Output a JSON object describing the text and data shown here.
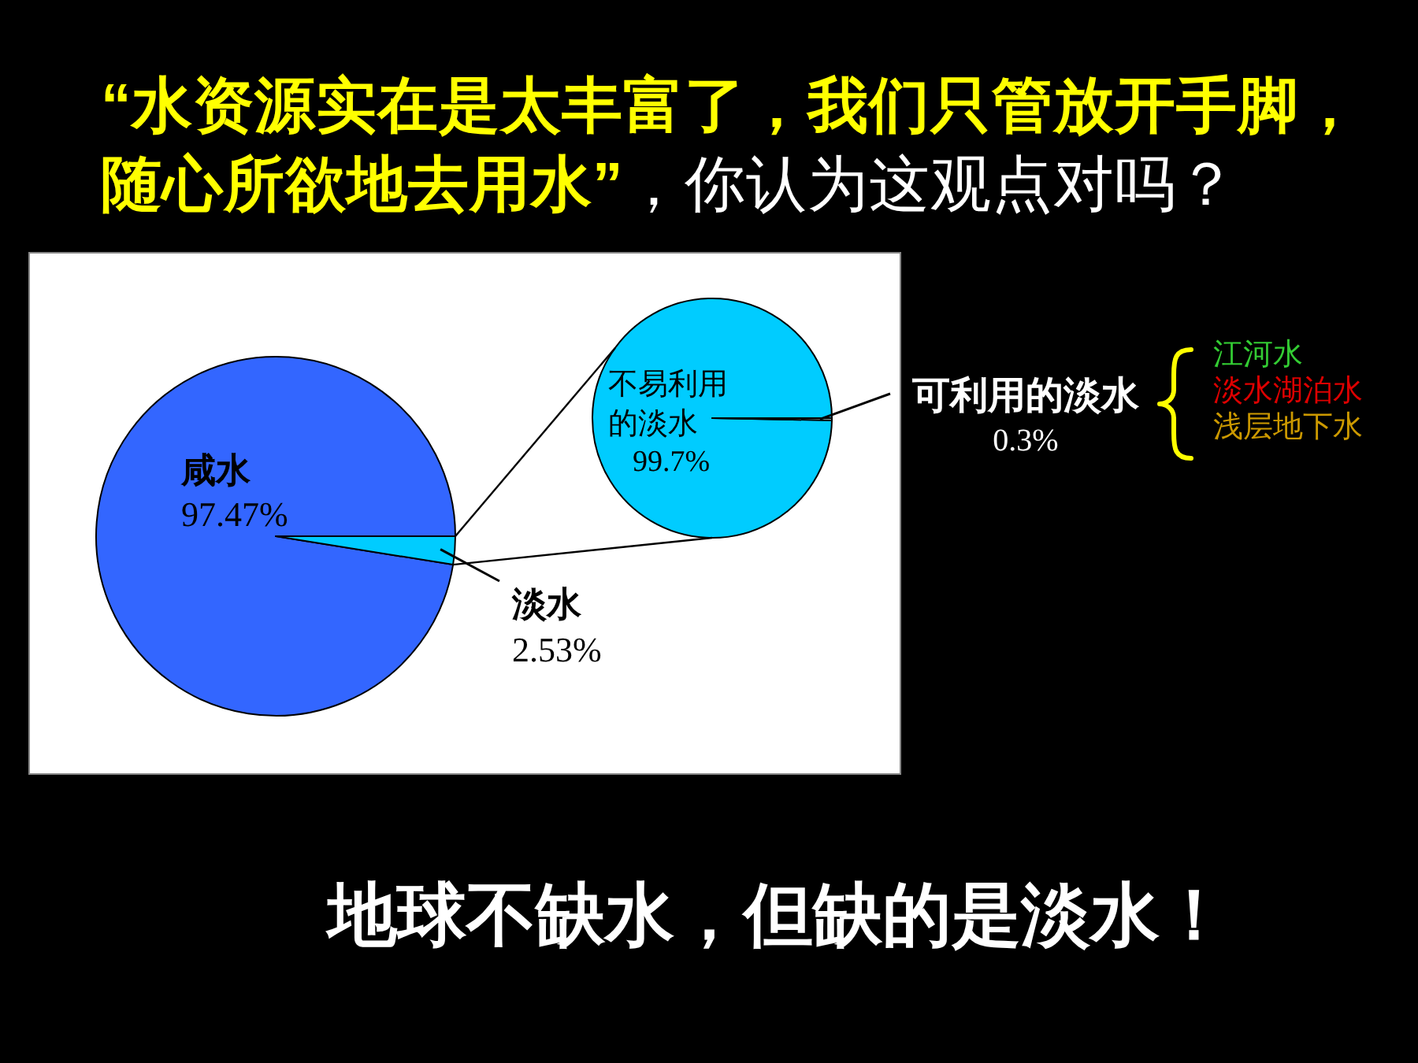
{
  "chart_data": [
    {
      "type": "pie",
      "title": "“水资源实在是太丰富了，我们只管放开手脚，随心所欲地去用水”",
      "subtitle": "，你认为这观点对吗？",
      "categories": [
        "咸水",
        "淡水"
      ],
      "values": [
        97.47,
        2.53
      ],
      "colors": [
        "#3366ff",
        "#00ccff"
      ],
      "value_labels": [
        "97.47%",
        "2.53%"
      ],
      "annotations": [
        "地球不缺水，但缺的是淡水！"
      ]
    },
    {
      "type": "pie",
      "categories": [
        "不易利用的淡水",
        "可利用的淡水"
      ],
      "values": [
        99.7,
        0.3
      ],
      "colors": [
        "#00ccff",
        "#ccffff"
      ],
      "value_labels": [
        "99.7%",
        "0.3%"
      ]
    },
    {
      "type": "other",
      "categories": [
        "江河水",
        "淡水湖泊水",
        "浅层地下水"
      ],
      "colors": [
        "#33cc33",
        "#dd0000",
        "#cc9900"
      ]
    }
  ]
}
